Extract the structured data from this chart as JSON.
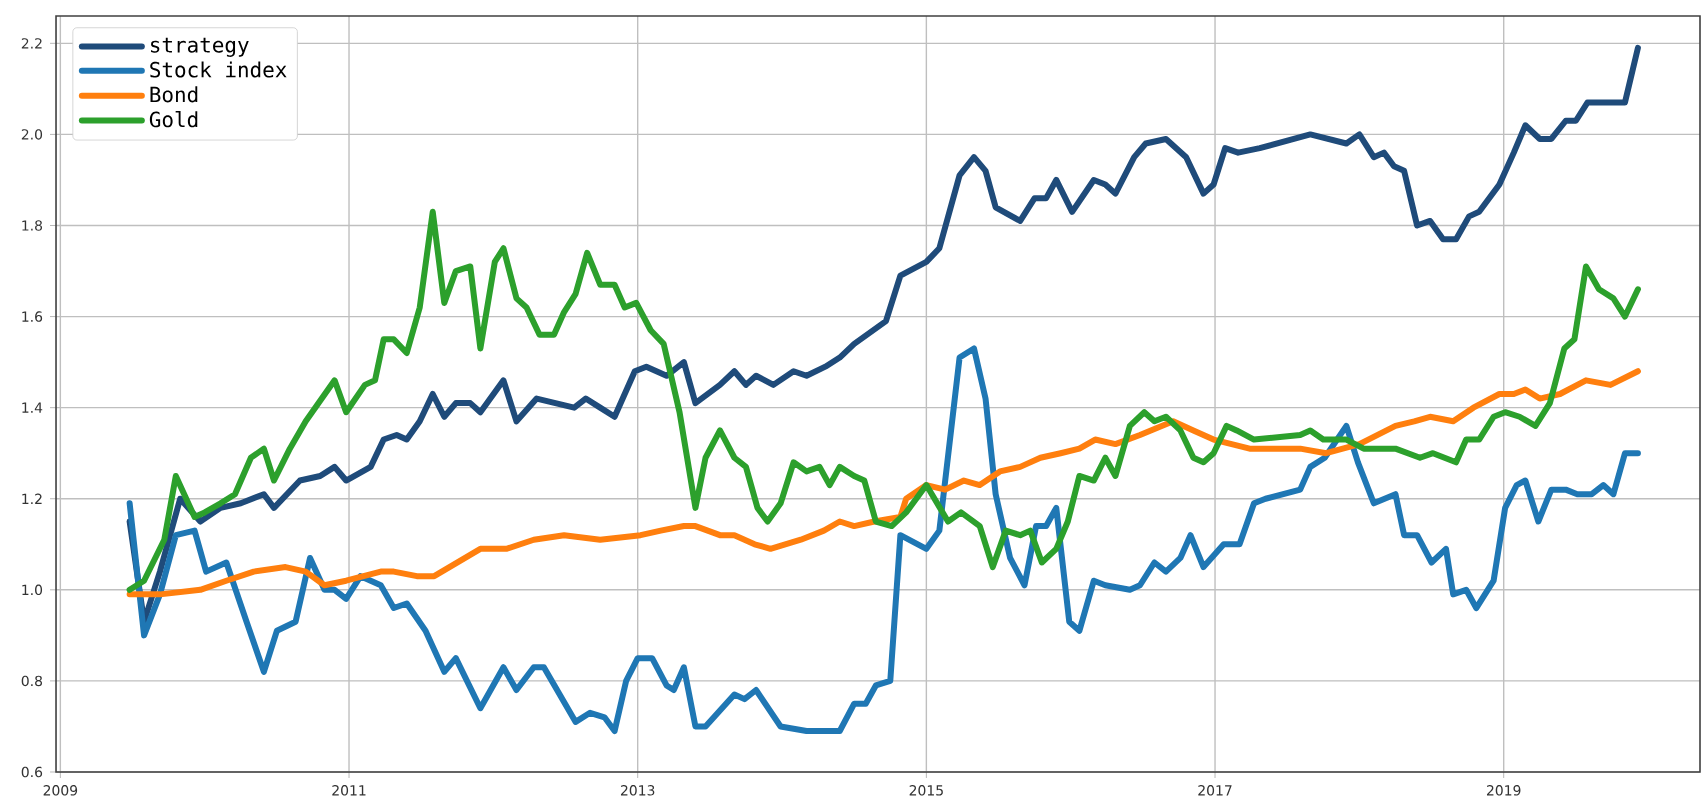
{
  "chart_data": {
    "type": "line",
    "legend": "top left",
    "grid": true,
    "xlim": [
      2008.97,
      2020.36
    ],
    "ylim": [
      0.6,
      2.26
    ],
    "xticks": [
      2009,
      2011,
      2013,
      2015,
      2017,
      2019
    ],
    "yticks": [
      {
        "value": 0.6,
        "label": "0.6"
      },
      {
        "value": 0.8,
        "label": "0.8"
      },
      {
        "value": 1.0,
        "label": "1.0"
      },
      {
        "value": 1.2,
        "label": "1.2"
      },
      {
        "value": 1.4,
        "label": "1.4"
      },
      {
        "value": 1.6,
        "label": "1.6"
      },
      {
        "value": 1.8,
        "label": "1.8"
      },
      {
        "value": 2.0,
        "label": "2.0"
      },
      {
        "value": 2.2,
        "label": "2.2"
      }
    ],
    "series": [
      {
        "name": "strategy",
        "color": "#1f4b7a",
        "x": [
          2009.48,
          2009.58,
          2009.69,
          2009.83,
          2009.97,
          2010.11,
          2010.25,
          2010.41,
          2010.48,
          2010.66,
          2010.8,
          2010.9,
          2010.98,
          2011.15,
          2011.24,
          2011.33,
          2011.4,
          2011.49,
          2011.58,
          2011.66,
          2011.74,
          2011.84,
          2011.91,
          2012.07,
          2012.16,
          2012.3,
          2012.56,
          2012.64,
          2012.74,
          2012.84,
          2012.98,
          2013.06,
          2013.2,
          2013.32,
          2013.4,
          2013.57,
          2013.67,
          2013.75,
          2013.82,
          2013.94,
          2014.08,
          2014.17,
          2014.3,
          2014.4,
          2014.5,
          2014.72,
          2014.82,
          2015.0,
          2015.09,
          2015.23,
          2015.33,
          2015.41,
          2015.48,
          2015.65,
          2015.75,
          2015.83,
          2015.9,
          2016.01,
          2016.16,
          2016.24,
          2016.31,
          2016.44,
          2016.52,
          2016.66,
          2016.8,
          2016.92,
          2016.99,
          2017.07,
          2017.16,
          2017.31,
          2017.66,
          2017.91,
          2018.0,
          2018.1,
          2018.17,
          2018.24,
          2018.31,
          2018.4,
          2018.49,
          2018.58,
          2018.67,
          2018.76,
          2018.83,
          2018.97,
          2019.07,
          2019.15,
          2019.25,
          2019.33,
          2019.43,
          2019.5,
          2019.58,
          2019.71,
          2019.84,
          2019.93
        ],
        "values": [
          1.15,
          0.93,
          1.04,
          1.2,
          1.15,
          1.18,
          1.19,
          1.21,
          1.18,
          1.24,
          1.25,
          1.27,
          1.24,
          1.27,
          1.33,
          1.34,
          1.33,
          1.37,
          1.43,
          1.38,
          1.41,
          1.41,
          1.39,
          1.46,
          1.37,
          1.42,
          1.4,
          1.42,
          1.4,
          1.38,
          1.48,
          1.49,
          1.47,
          1.5,
          1.41,
          1.45,
          1.48,
          1.45,
          1.47,
          1.45,
          1.48,
          1.47,
          1.49,
          1.51,
          1.54,
          1.59,
          1.69,
          1.72,
          1.75,
          1.91,
          1.95,
          1.92,
          1.84,
          1.81,
          1.86,
          1.86,
          1.9,
          1.83,
          1.9,
          1.89,
          1.87,
          1.95,
          1.98,
          1.99,
          1.95,
          1.87,
          1.89,
          1.97,
          1.96,
          1.97,
          2.0,
          1.98,
          2.0,
          1.95,
          1.96,
          1.93,
          1.92,
          1.8,
          1.81,
          1.77,
          1.77,
          1.82,
          1.83,
          1.89,
          1.96,
          2.02,
          1.99,
          1.99,
          2.03,
          2.03,
          2.07,
          2.07,
          2.07,
          2.19
        ]
      },
      {
        "name": "Stock index",
        "color": "#1f77b4",
        "x": [
          2009.48,
          2009.58,
          2009.69,
          2009.8,
          2009.93,
          2010.01,
          2010.15,
          2010.29,
          2010.41,
          2010.5,
          2010.63,
          2010.73,
          2010.83,
          2010.9,
          2010.98,
          2011.08,
          2011.22,
          2011.31,
          2011.4,
          2011.53,
          2011.66,
          2011.74,
          2011.91,
          2012.07,
          2012.16,
          2012.28,
          2012.35,
          2012.57,
          2012.67,
          2012.77,
          2012.84,
          2012.92,
          2013.0,
          2013.1,
          2013.2,
          2013.25,
          2013.32,
          2013.4,
          2013.47,
          2013.67,
          2013.74,
          2013.82,
          2013.99,
          2014.17,
          2014.4,
          2014.5,
          2014.58,
          2014.65,
          2014.75,
          2014.82,
          2015.0,
          2015.09,
          2015.23,
          2015.33,
          2015.41,
          2015.48,
          2015.58,
          2015.68,
          2015.76,
          2015.83,
          2015.9,
          2015.99,
          2016.06,
          2016.16,
          2016.24,
          2016.41,
          2016.48,
          2016.58,
          2016.66,
          2016.76,
          2016.83,
          2016.92,
          2017.06,
          2017.17,
          2017.27,
          2017.35,
          2017.59,
          2017.66,
          2017.76,
          2017.91,
          2017.99,
          2018.1,
          2018.25,
          2018.31,
          2018.4,
          2018.5,
          2018.6,
          2018.65,
          2018.74,
          2018.81,
          2018.93,
          2019.01,
          2019.09,
          2019.15,
          2019.24,
          2019.33,
          2019.43,
          2019.51,
          2019.61,
          2019.69,
          2019.76,
          2019.84,
          2019.93
        ],
        "values": [
          1.19,
          0.9,
          0.99,
          1.12,
          1.13,
          1.04,
          1.06,
          0.93,
          0.82,
          0.91,
          0.93,
          1.07,
          1.0,
          1.0,
          0.98,
          1.03,
          1.01,
          0.96,
          0.97,
          0.91,
          0.82,
          0.85,
          0.74,
          0.83,
          0.78,
          0.83,
          0.83,
          0.71,
          0.73,
          0.72,
          0.69,
          0.8,
          0.85,
          0.85,
          0.79,
          0.78,
          0.83,
          0.7,
          0.7,
          0.77,
          0.76,
          0.78,
          0.7,
          0.69,
          0.69,
          0.75,
          0.75,
          0.79,
          0.8,
          1.12,
          1.09,
          1.13,
          1.51,
          1.53,
          1.42,
          1.21,
          1.07,
          1.01,
          1.14,
          1.14,
          1.18,
          0.93,
          0.91,
          1.02,
          1.01,
          1.0,
          1.01,
          1.06,
          1.04,
          1.07,
          1.12,
          1.05,
          1.1,
          1.1,
          1.19,
          1.2,
          1.22,
          1.27,
          1.29,
          1.36,
          1.28,
          1.19,
          1.21,
          1.12,
          1.12,
          1.06,
          1.09,
          0.99,
          1.0,
          0.96,
          1.02,
          1.18,
          1.23,
          1.24,
          1.15,
          1.22,
          1.22,
          1.21,
          1.21,
          1.23,
          1.21,
          1.3,
          1.3
        ]
      },
      {
        "name": "Bond",
        "color": "#ff7f0e",
        "x": [
          2009.48,
          2009.69,
          2009.97,
          2010.15,
          2010.34,
          2010.56,
          2010.7,
          2010.83,
          2010.98,
          2011.22,
          2011.31,
          2011.47,
          2011.59,
          2011.91,
          2012.09,
          2012.28,
          2012.49,
          2012.74,
          2013.02,
          2013.16,
          2013.32,
          2013.4,
          2013.57,
          2013.67,
          2013.81,
          2013.92,
          2014.13,
          2014.29,
          2014.4,
          2014.5,
          2014.64,
          2014.82,
          2014.86,
          2015.0,
          2015.13,
          2015.26,
          2015.37,
          2015.51,
          2015.65,
          2015.79,
          2015.93,
          2016.06,
          2016.17,
          2016.31,
          2016.48,
          2016.71,
          2016.85,
          2016.99,
          2017.24,
          2017.59,
          2017.77,
          2018.0,
          2018.25,
          2018.38,
          2018.49,
          2018.65,
          2018.79,
          2018.97,
          2019.07,
          2019.15,
          2019.25,
          2019.39,
          2019.57,
          2019.74,
          2019.93
        ],
        "values": [
          0.99,
          0.99,
          1.0,
          1.02,
          1.04,
          1.05,
          1.04,
          1.01,
          1.02,
          1.04,
          1.04,
          1.03,
          1.03,
          1.09,
          1.09,
          1.11,
          1.12,
          1.11,
          1.12,
          1.13,
          1.14,
          1.14,
          1.12,
          1.12,
          1.1,
          1.09,
          1.11,
          1.13,
          1.15,
          1.14,
          1.15,
          1.16,
          1.2,
          1.23,
          1.22,
          1.24,
          1.23,
          1.26,
          1.27,
          1.29,
          1.3,
          1.31,
          1.33,
          1.32,
          1.34,
          1.37,
          1.35,
          1.33,
          1.31,
          1.31,
          1.3,
          1.32,
          1.36,
          1.37,
          1.38,
          1.37,
          1.4,
          1.43,
          1.43,
          1.44,
          1.42,
          1.43,
          1.46,
          1.45,
          1.48
        ]
      },
      {
        "name": "Gold",
        "color": "#2ca02c",
        "x": [
          2009.48,
          2009.58,
          2009.72,
          2009.8,
          2009.93,
          2010.0,
          2010.11,
          2010.21,
          2010.32,
          2010.41,
          2010.48,
          2010.59,
          2010.7,
          2010.9,
          2010.98,
          2011.11,
          2011.18,
          2011.24,
          2011.31,
          2011.4,
          2011.49,
          2011.58,
          2011.66,
          2011.74,
          2011.84,
          2011.91,
          2012.01,
          2012.07,
          2012.16,
          2012.23,
          2012.32,
          2012.42,
          2012.49,
          2012.57,
          2012.65,
          2012.74,
          2012.84,
          2012.91,
          2012.99,
          2013.09,
          2013.18,
          2013.29,
          2013.4,
          2013.47,
          2013.57,
          2013.67,
          2013.75,
          2013.83,
          2013.9,
          2013.99,
          2014.08,
          2014.17,
          2014.26,
          2014.33,
          2014.4,
          2014.5,
          2014.57,
          2014.65,
          2014.76,
          2014.86,
          2015.0,
          2015.15,
          2015.24,
          2015.37,
          2015.46,
          2015.55,
          2015.65,
          2015.72,
          2015.8,
          2015.9,
          2015.98,
          2016.06,
          2016.16,
          2016.24,
          2016.31,
          2016.41,
          2016.51,
          2016.58,
          2016.66,
          2016.76,
          2016.85,
          2016.92,
          2016.99,
          2017.08,
          2017.15,
          2017.27,
          2017.59,
          2017.66,
          2017.75,
          2017.91,
          2018.03,
          2018.25,
          2018.42,
          2018.51,
          2018.67,
          2018.74,
          2018.83,
          2018.93,
          2019.01,
          2019.11,
          2019.22,
          2019.32,
          2019.42,
          2019.49,
          2019.57,
          2019.66,
          2019.76,
          2019.84,
          2019.93
        ],
        "values": [
          1.0,
          1.02,
          1.11,
          1.25,
          1.16,
          1.17,
          1.19,
          1.21,
          1.29,
          1.31,
          1.24,
          1.31,
          1.37,
          1.46,
          1.39,
          1.45,
          1.46,
          1.55,
          1.55,
          1.52,
          1.62,
          1.83,
          1.63,
          1.7,
          1.71,
          1.53,
          1.72,
          1.75,
          1.64,
          1.62,
          1.56,
          1.56,
          1.61,
          1.65,
          1.74,
          1.67,
          1.67,
          1.62,
          1.63,
          1.57,
          1.54,
          1.39,
          1.18,
          1.29,
          1.35,
          1.29,
          1.27,
          1.18,
          1.15,
          1.19,
          1.28,
          1.26,
          1.27,
          1.23,
          1.27,
          1.25,
          1.24,
          1.15,
          1.14,
          1.17,
          1.23,
          1.15,
          1.17,
          1.14,
          1.05,
          1.13,
          1.12,
          1.13,
          1.06,
          1.09,
          1.15,
          1.25,
          1.24,
          1.29,
          1.25,
          1.36,
          1.39,
          1.37,
          1.38,
          1.35,
          1.29,
          1.28,
          1.3,
          1.36,
          1.35,
          1.33,
          1.34,
          1.35,
          1.33,
          1.33,
          1.31,
          1.31,
          1.29,
          1.3,
          1.28,
          1.33,
          1.33,
          1.38,
          1.39,
          1.38,
          1.36,
          1.41,
          1.53,
          1.55,
          1.71,
          1.66,
          1.64,
          1.6,
          1.66
        ]
      }
    ]
  }
}
